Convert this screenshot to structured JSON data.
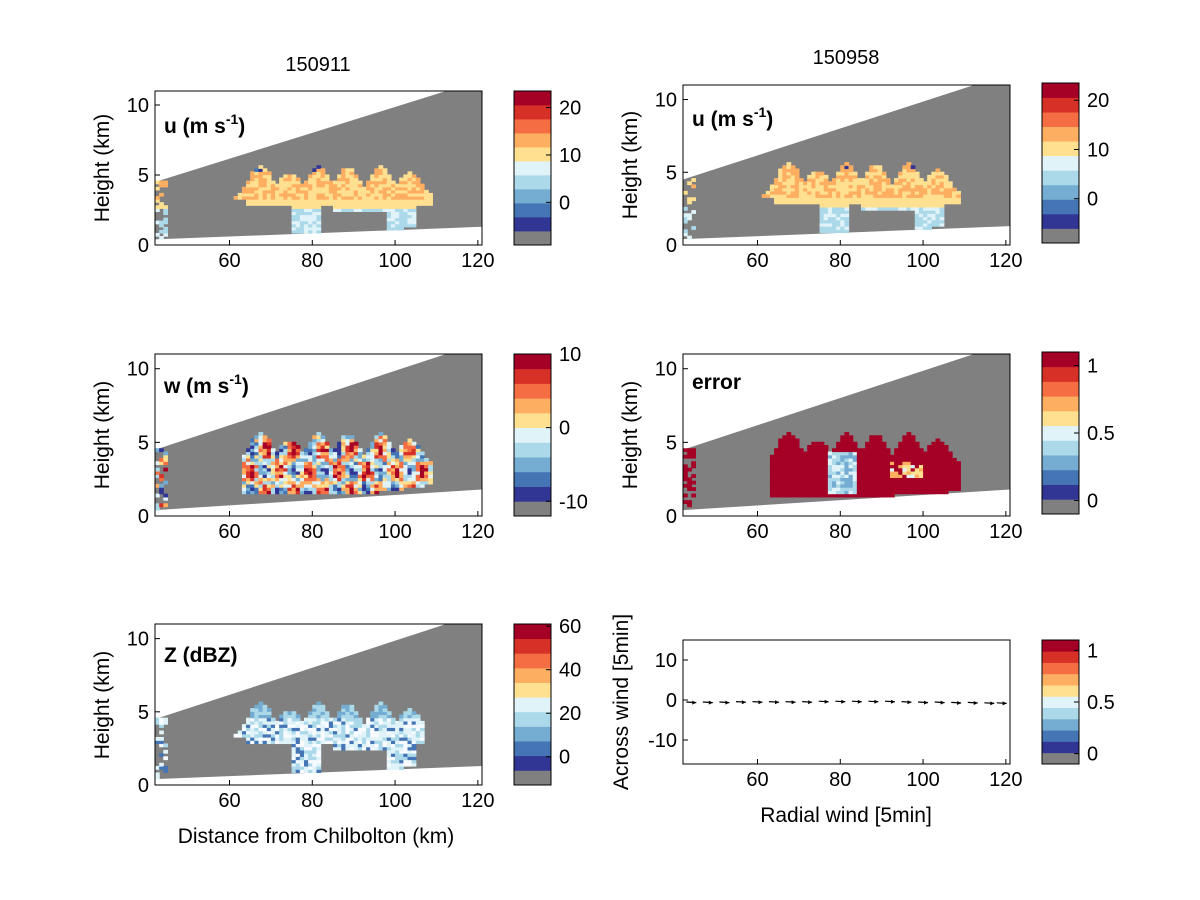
{
  "colors": {
    "data_gray": "#808080",
    "colormap": [
      "#808080",
      "#313695",
      "#4575b4",
      "#74add1",
      "#abd9e9",
      "#e0f3f8",
      "#fee090",
      "#fdae61",
      "#f46d43",
      "#d73027",
      "#a50026"
    ]
  },
  "columns": [
    {
      "title": "150911"
    },
    {
      "title": "150958"
    }
  ],
  "chart_data": [
    {
      "id": "u-left",
      "type": "heatmap",
      "label": "u (m s",
      "label_sup": "-1",
      "label_close": ")",
      "ylabel": "Height (km)",
      "xlabel": "",
      "xlim": [
        42,
        121
      ],
      "ylim": [
        0,
        11
      ],
      "xticks": [
        "60",
        "80",
        "100",
        "120"
      ],
      "xtick_values": [
        60,
        80,
        100,
        120
      ],
      "yticks": [
        "0",
        "5",
        "10"
      ],
      "ytick_values": [
        0,
        5,
        10
      ],
      "colorbar": {
        "range": [
          -9,
          23.5
        ],
        "ticks": [
          "0",
          "10",
          "20"
        ],
        "tick_values": [
          0,
          10,
          20
        ]
      },
      "scan_wedge": {
        "top": [
          [
            42,
            4.5
          ],
          [
            121,
            11.8
          ]
        ],
        "bottom": [
          [
            42,
            0.4
          ],
          [
            121,
            1.3
          ]
        ]
      },
      "echo_region": {
        "x_range": [
          58,
          108
        ],
        "z_range": [
          0.5,
          5.6
        ],
        "typical_value": "10-15",
        "low_values_near_surface": "5-8"
      }
    },
    {
      "id": "u-right",
      "type": "heatmap",
      "label": "u (m s",
      "label_sup": "-1",
      "label_close": ")",
      "ylabel": "Height (km)",
      "xlabel": "",
      "xlim": [
        42,
        121
      ],
      "ylim": [
        0,
        11
      ],
      "xticks": [
        "60",
        "80",
        "100",
        "120"
      ],
      "xtick_values": [
        60,
        80,
        100,
        120
      ],
      "yticks": [
        "0",
        "5",
        "10"
      ],
      "ytick_values": [
        0,
        5,
        10
      ],
      "colorbar": {
        "range": [
          -9,
          23.5
        ],
        "ticks": [
          "0",
          "10",
          "20"
        ],
        "tick_values": [
          0,
          10,
          20
        ]
      },
      "scan_wedge": {
        "top": [
          [
            42,
            4.5
          ],
          [
            121,
            11.8
          ]
        ],
        "bottom": [
          [
            42,
            0.4
          ],
          [
            121,
            1.3
          ]
        ]
      },
      "echo_region": {
        "x_range": [
          58,
          108
        ],
        "z_range": [
          0.5,
          5.6
        ],
        "typical_value": "10-15",
        "low_values_near_surface": "5-8"
      }
    },
    {
      "id": "w-left",
      "type": "heatmap",
      "label": "w (m s",
      "label_sup": "-1",
      "label_close": ")",
      "ylabel": "Height (km)",
      "xlabel": "",
      "xlim": [
        42,
        121
      ],
      "ylim": [
        0,
        11
      ],
      "xticks": [
        "60",
        "80",
        "100",
        "120"
      ],
      "xtick_values": [
        60,
        80,
        100,
        120
      ],
      "yticks": [
        "0",
        "5",
        "10"
      ],
      "ytick_values": [
        0,
        5,
        10
      ],
      "colorbar": {
        "range": [
          -12,
          10
        ],
        "ticks": [
          "-10",
          "0",
          "10"
        ],
        "tick_values": [
          -10,
          0,
          10
        ]
      },
      "scan_wedge": {
        "top": [
          [
            42,
            4.5
          ],
          [
            121,
            11.8
          ]
        ],
        "bottom": [
          [
            42,
            0.4
          ],
          [
            121,
            1.8
          ]
        ]
      },
      "echo_region": {
        "x_range": [
          63,
          108
        ],
        "z_range": [
          1.5,
          5.6
        ],
        "typical_value": "-10 to 10"
      }
    },
    {
      "id": "error-right",
      "type": "heatmap",
      "label": "error",
      "label_sup": "",
      "label_close": "",
      "ylabel": "Height (km)",
      "xlabel": "",
      "xlim": [
        42,
        121
      ],
      "ylim": [
        0,
        11
      ],
      "xticks": [
        "60",
        "80",
        "100",
        "120"
      ],
      "xtick_values": [
        60,
        80,
        100,
        120
      ],
      "yticks": [
        "0",
        "5",
        "10"
      ],
      "ytick_values": [
        0,
        5,
        10
      ],
      "colorbar": {
        "range": [
          -0.1,
          1.1
        ],
        "ticks": [
          "0",
          "0.5",
          "1"
        ],
        "tick_values": [
          0,
          0.5,
          1
        ]
      },
      "scan_wedge": {
        "top": [
          [
            42,
            4.5
          ],
          [
            121,
            11.8
          ]
        ],
        "bottom": [
          [
            42,
            0.4
          ],
          [
            121,
            1.8
          ]
        ]
      },
      "echo_region": {
        "x_range": [
          63,
          108
        ],
        "z_range": [
          1.0,
          5.6
        ],
        "typical_value": "1",
        "low_values_in_core": "0.3-0.6"
      }
    },
    {
      "id": "z-left",
      "type": "heatmap",
      "label": "Z (dBZ)",
      "label_sup": "",
      "label_close": "",
      "ylabel": "Height (km)",
      "xlabel": "Distance from Chilbolton (km)",
      "xlim": [
        42,
        121
      ],
      "ylim": [
        0,
        11
      ],
      "xticks": [
        "60",
        "80",
        "100",
        "120"
      ],
      "xtick_values": [
        60,
        80,
        100,
        120
      ],
      "yticks": [
        "0",
        "5",
        "10"
      ],
      "ytick_values": [
        0,
        5,
        10
      ],
      "colorbar": {
        "range": [
          -13,
          61
        ],
        "ticks": [
          "0",
          "20",
          "40",
          "60"
        ],
        "tick_values": [
          0,
          20,
          40,
          60
        ]
      },
      "scan_wedge": {
        "top": [
          [
            42,
            4.5
          ],
          [
            121,
            11.8
          ]
        ],
        "bottom": [
          [
            42,
            0.4
          ],
          [
            121,
            1.3
          ]
        ]
      },
      "echo_region": {
        "x_range": [
          58,
          106
        ],
        "z_range": [
          0.5,
          5.6
        ],
        "typical_value": "10-25"
      }
    },
    {
      "id": "wind-right",
      "type": "scatter",
      "label": "",
      "ylabel": "Across wind [5min]",
      "xlabel": "Radial wind [5min]",
      "xlim": [
        42,
        121
      ],
      "ylim": [
        -16,
        15
      ],
      "xticks": [
        "60",
        "80",
        "100",
        "120"
      ],
      "xtick_values": [
        60,
        80,
        100,
        120
      ],
      "yticks": [
        "-10",
        "0",
        "10"
      ],
      "ytick_values": [
        -10,
        0,
        10
      ],
      "colorbar": {
        "range": [
          -0.1,
          1.1
        ],
        "ticks": [
          "0",
          "0.5",
          "1"
        ],
        "tick_values": [
          0,
          0.5,
          1
        ]
      },
      "arrows": {
        "x": [
          44,
          48,
          52,
          56,
          60,
          64,
          68,
          72,
          76,
          80,
          84,
          88,
          92,
          96,
          100,
          104,
          108,
          112,
          116,
          119
        ],
        "y": [
          -0.5,
          -0.5,
          -0.5,
          -0.4,
          -0.4,
          -0.4,
          -0.4,
          -0.4,
          -0.3,
          -0.3,
          -0.3,
          -0.3,
          -0.3,
          -0.4,
          -0.5,
          -0.5,
          -0.6,
          -0.6,
          -0.7,
          -0.7
        ]
      }
    }
  ]
}
